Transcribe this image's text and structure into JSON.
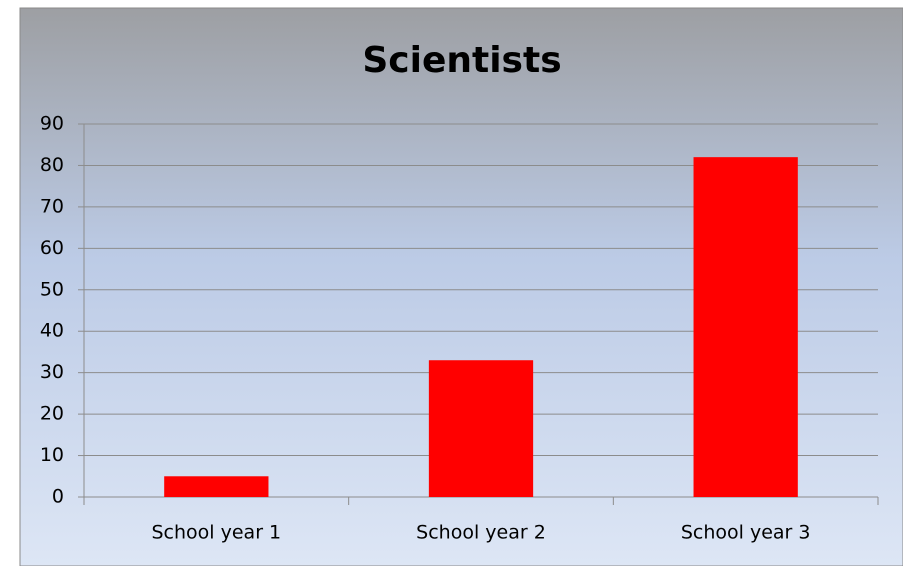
{
  "chart_data": {
    "type": "bar",
    "title": "Scientists",
    "categories": [
      "School year 1",
      "School year 2",
      "School year 3"
    ],
    "values": [
      5,
      33,
      82
    ],
    "color": "#ff0000",
    "ylim": [
      0,
      90
    ],
    "yticks": [
      0,
      10,
      20,
      30,
      40,
      50,
      60,
      70,
      80,
      90
    ],
    "grid": true
  }
}
